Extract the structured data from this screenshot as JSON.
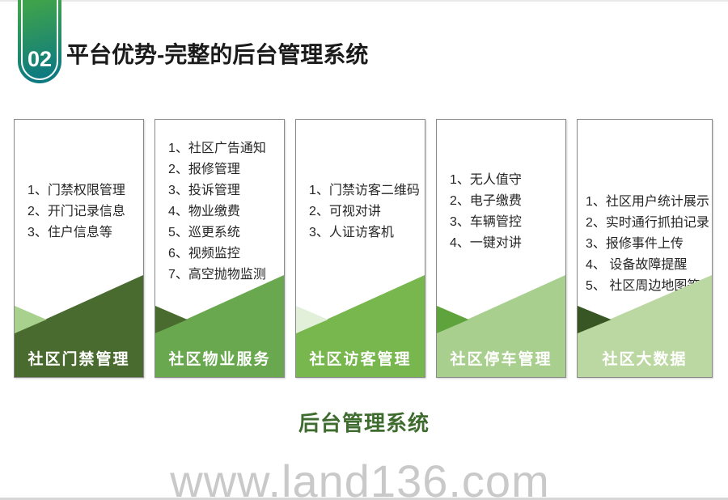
{
  "slide": {
    "section_number": "02",
    "title": "平台优势-完整的后台管理系统",
    "footer_heading": "后台管理系统",
    "watermark": "www.land136.com"
  },
  "colors": {
    "ribbon_gradient_start": "#3ea24c",
    "ribbon_gradient_end": "#0d7a81",
    "footer_heading_green": "#3e6b2e",
    "watermark_gray": "#c9c9c9",
    "card_border_gray": "#898989"
  },
  "cards": [
    {
      "label": "社区门禁管理",
      "banner_color": "#4a6b2f",
      "accent_color": "#a9d18e",
      "items": [
        "1、门禁权限管理",
        "2、开门记录信息",
        "3、住户信息等"
      ]
    },
    {
      "label": "社区物业服务",
      "banner_color": "#69a84f",
      "accent_color": "#4a6b2f",
      "items": [
        "1、社区广告通知",
        "2、报修管理",
        "3、投诉管理",
        "4、物业缴费",
        "5、巡更系统",
        "6、视频监控",
        "7、高空抛物监测"
      ]
    },
    {
      "label": "社区访客管理",
      "banner_color": "#78b74e",
      "accent_color": "#e2efd9",
      "items": [
        "1、门禁访客二维码",
        "2、可视对讲",
        "3、人证访客机"
      ]
    },
    {
      "label": "社区停车管理",
      "banner_color": "#a9cf8e",
      "accent_color": "#5fa33c",
      "items": [
        "1、无人值守",
        "2、电子缴费",
        "3、车辆管控",
        "4、一键对讲"
      ]
    },
    {
      "label": "社区大数据",
      "banner_color": "#bcd8a2",
      "accent_color": "#375623",
      "items": [
        "1、社区用户统计展示",
        "2、实时通行抓拍记录",
        "3、报修事件上传",
        "4、 设备故障提醒",
        "5、 社区周边地图等"
      ]
    }
  ]
}
